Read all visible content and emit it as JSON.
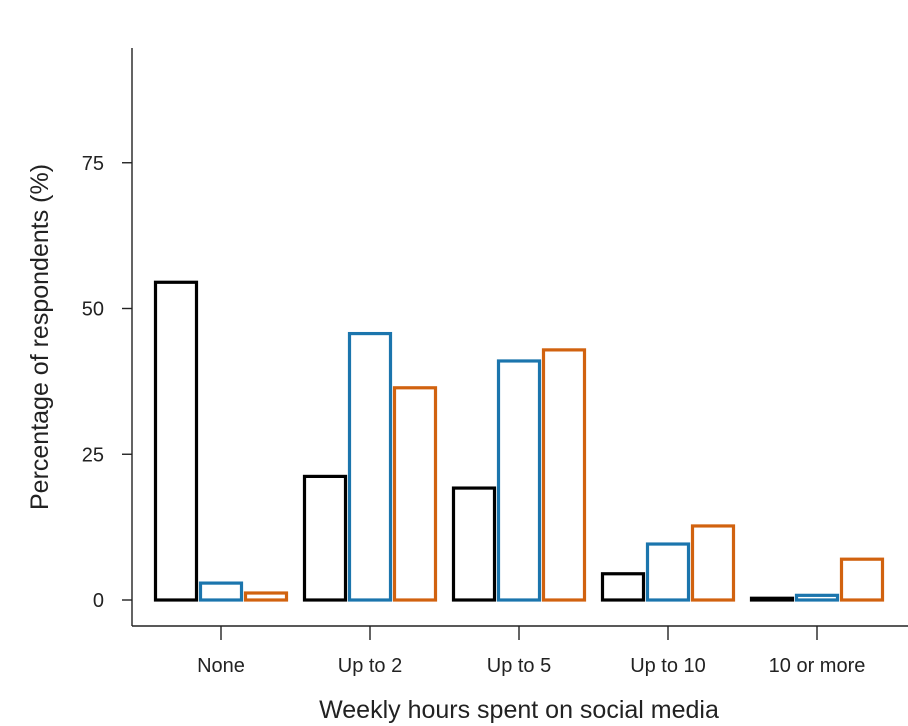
{
  "chart_data": {
    "type": "bar",
    "xlabel": "Weekly hours spent on social media",
    "ylabel": "Percentage of respondents (%)",
    "categories": [
      "None",
      "Up to 2",
      "Up to 5",
      "Up to 10",
      "10 or more"
    ],
    "ylim": [
      0,
      95
    ],
    "yticks": [
      0,
      25,
      50,
      75
    ],
    "grid": false,
    "legend": "none",
    "series": [
      {
        "color": "#000000",
        "values": [
          54.5,
          21.2,
          19.2,
          4.5,
          0.3
        ]
      },
      {
        "color": "#1b75ad",
        "values": [
          2.9,
          45.7,
          41.0,
          9.6,
          0.8
        ]
      },
      {
        "color": "#d1620f",
        "values": [
          1.2,
          36.4,
          42.9,
          12.7,
          7.0
        ]
      }
    ]
  }
}
